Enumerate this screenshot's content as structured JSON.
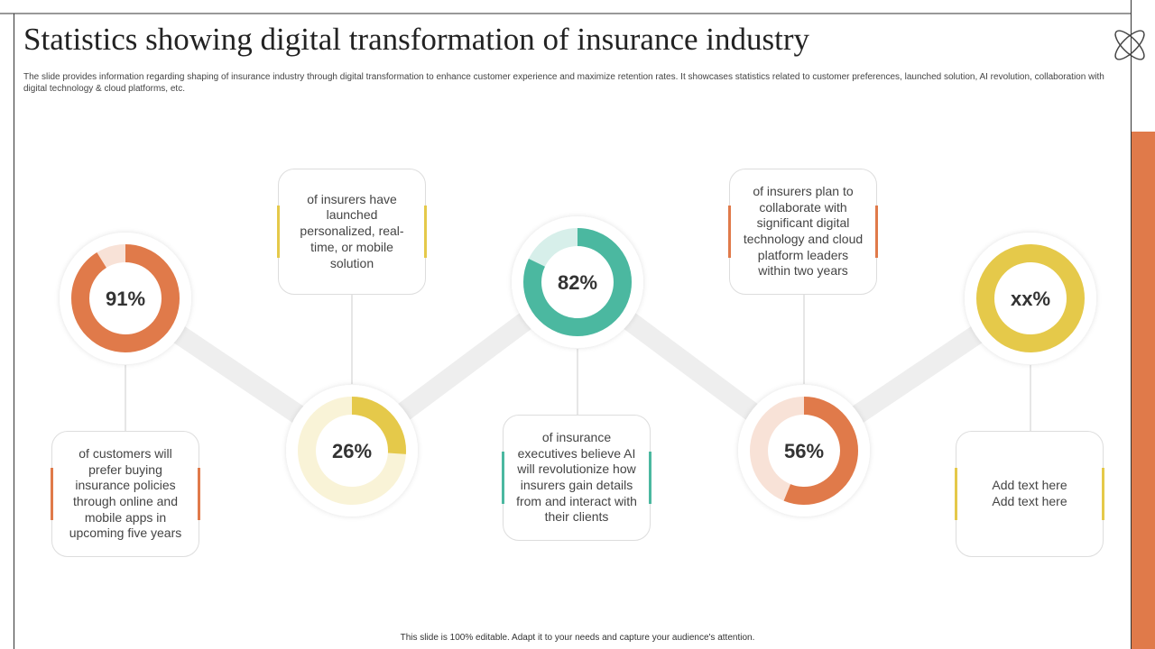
{
  "header": {
    "title": "Statistics showing digital transformation of insurance industry",
    "subtitle": "The slide provides information regarding shaping of insurance industry through digital transformation to enhance customer experience and maximize retention rates. It showcases statistics related to customer preferences, launched solution, AI revolution, collaboration with digital technology & cloud platforms, etc."
  },
  "stats": [
    {
      "value": 91,
      "label": "91%",
      "color": "#E07A4A",
      "text": "of customers will prefer buying insurance policies through online and mobile apps in upcoming five years"
    },
    {
      "value": 26,
      "label": "26%",
      "color": "#E5C94A",
      "text": "of insurers have launched personalized, real-time, or mobile solution"
    },
    {
      "value": 82,
      "label": "82%",
      "color": "#4BB8A0",
      "text": "of insurance executives believe AI will revolutionize how insurers gain details from and interact with their clients"
    },
    {
      "value": 56,
      "label": "56%",
      "color": "#E07A4A",
      "text": "of insurers plan to collaborate with significant digital technology and cloud platform leaders within two years"
    },
    {
      "label": "xx%",
      "color": "#E5C94A",
      "text": "Add text here\nAdd text here"
    }
  ],
  "footer": "This slide is 100% editable. Adapt it to your needs and capture your audience's attention."
}
